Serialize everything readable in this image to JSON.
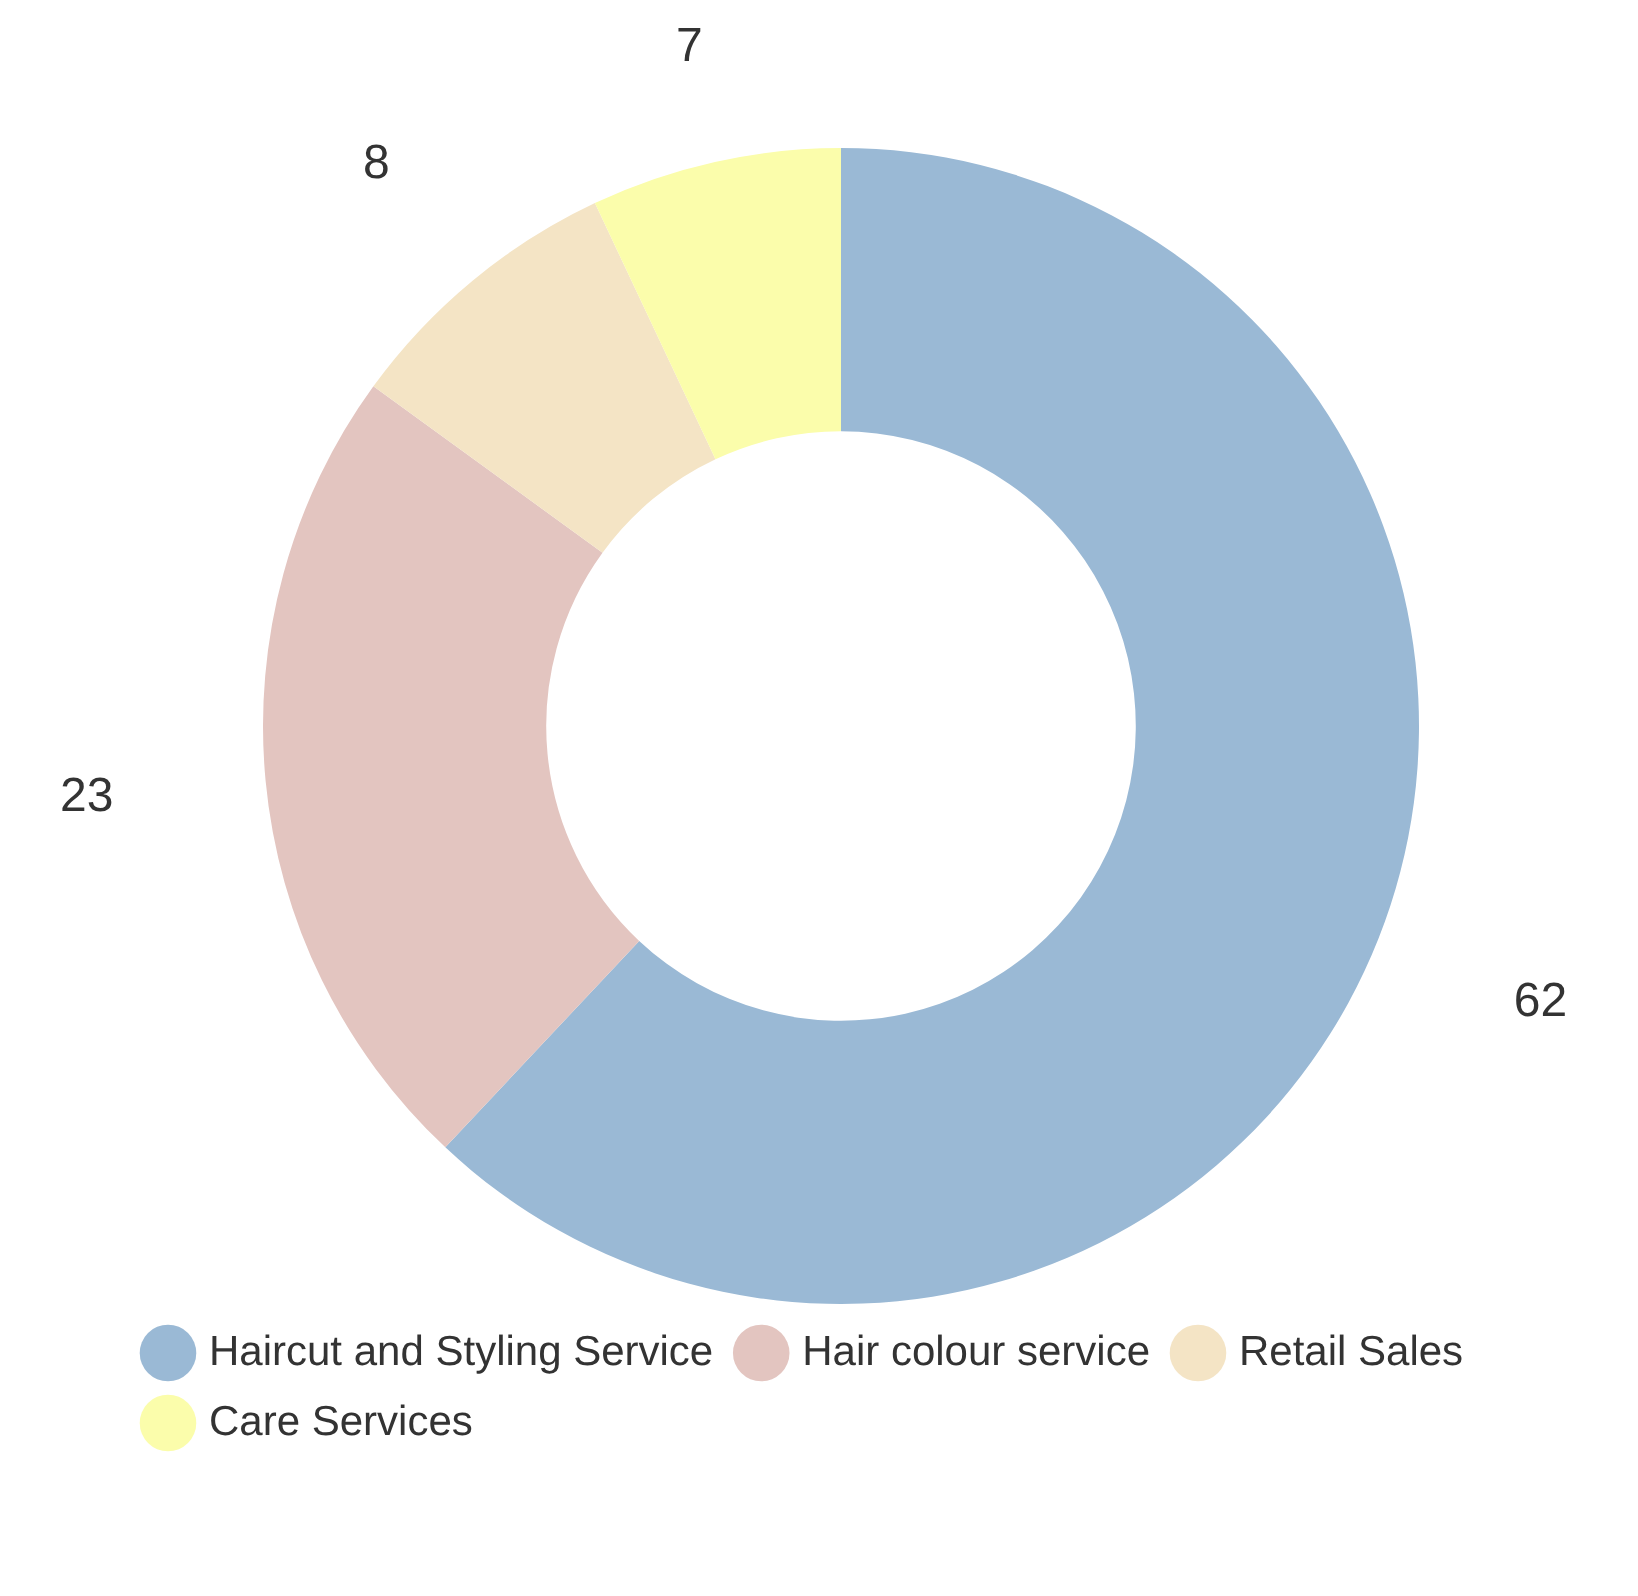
{
  "chart_data": {
    "type": "donut",
    "categories": [
      "Haircut and Styling Service",
      "Hair colour service",
      "Retail Sales",
      "Care Services"
    ],
    "values": [
      62,
      23,
      8,
      7
    ],
    "colors": [
      "#9ab9d5",
      "#e3c5c0",
      "#f4e4c5",
      "#fbfdab"
    ],
    "data_labels": true,
    "legend": "bottom"
  }
}
